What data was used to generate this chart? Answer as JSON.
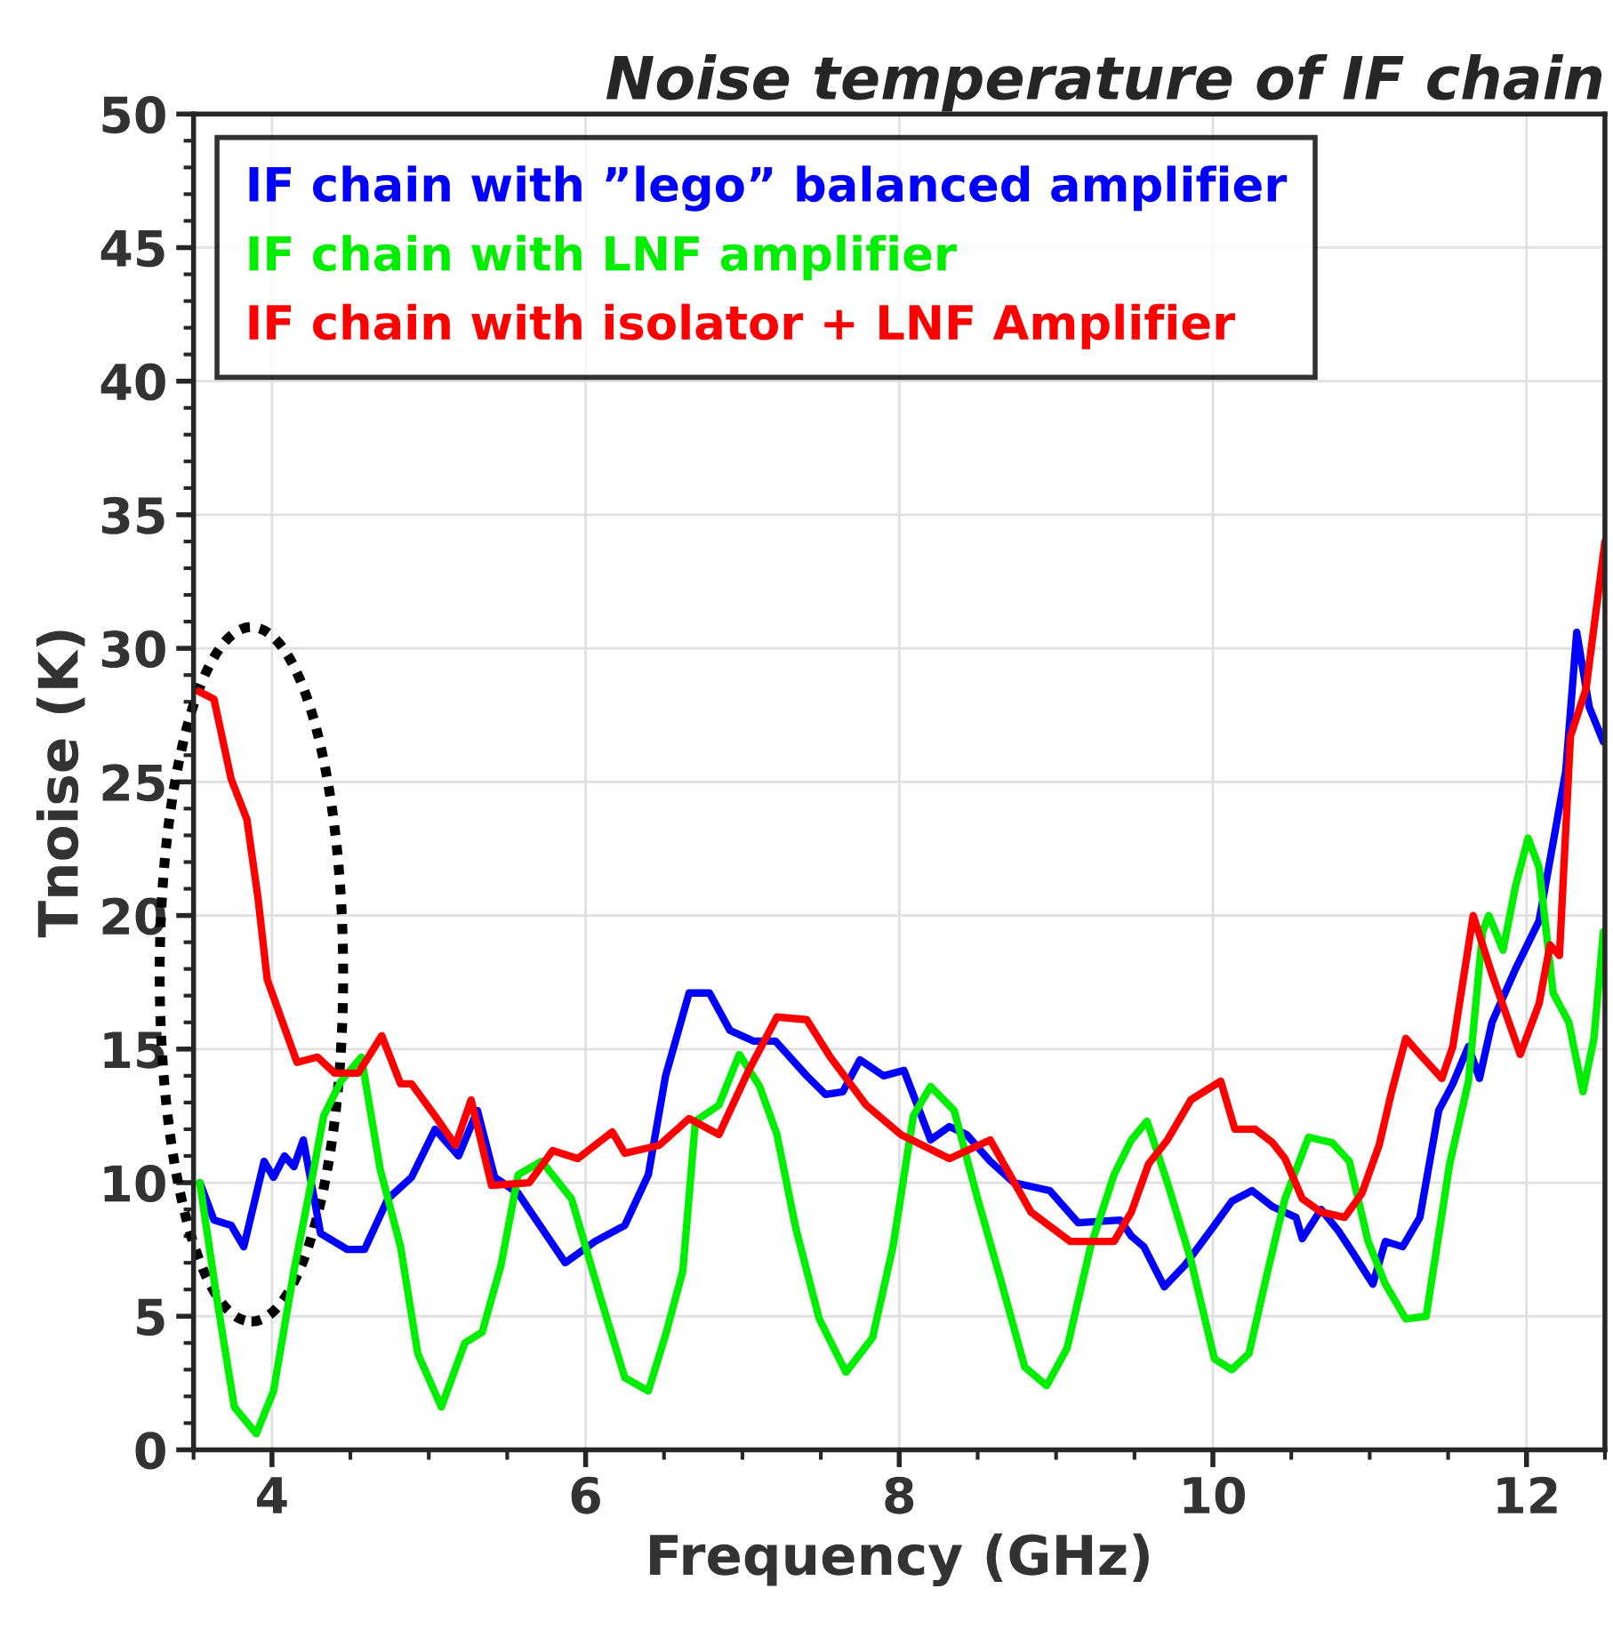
{
  "chart_data": {
    "type": "line",
    "title": "Noise temperature of IF chain",
    "xlabel": "Frequency (GHz)",
    "ylabel": "Tnoise (K)",
    "xlim": [
      3.5,
      12.5
    ],
    "xticks": [
      4,
      6,
      8,
      10,
      12
    ],
    "ylim": [
      0,
      50
    ],
    "yticks": [
      0,
      5,
      10,
      15,
      20,
      25,
      30,
      35,
      40,
      45,
      50
    ],
    "grid": true,
    "legend": "top left",
    "marker": "none",
    "line_style": "solid",
    "series": [
      {
        "name": "IF chain with ”lego” balanced amplifier",
        "color": "#0000ff",
        "x": [
          3.54,
          3.63,
          3.74,
          3.82,
          3.95,
          4.01,
          4.08,
          4.14,
          4.2,
          4.31,
          4.48,
          4.59,
          4.74,
          4.89,
          5.04,
          5.19,
          5.31,
          5.42,
          5.57,
          5.72,
          5.87,
          6.06,
          6.25,
          6.4,
          6.51,
          6.66,
          6.79,
          6.92,
          7.07,
          7.21,
          7.41,
          7.53,
          7.64,
          7.75,
          7.9,
          8.03,
          8.2,
          8.32,
          8.43,
          8.58,
          8.73,
          8.96,
          9.14,
          9.41,
          9.48,
          9.56,
          9.69,
          9.82,
          10.01,
          10.12,
          10.25,
          10.38,
          10.53,
          10.57,
          10.69,
          10.8,
          10.89,
          11.02,
          11.1,
          11.21,
          11.32,
          11.44,
          11.53,
          11.63,
          11.7,
          11.78,
          11.93,
          12.08,
          12.19,
          12.25,
          12.32,
          12.4,
          12.49
        ],
        "values": [
          10.0,
          8.6,
          8.4,
          7.6,
          10.8,
          10.2,
          11.0,
          10.6,
          11.6,
          8.1,
          7.5,
          7.5,
          9.4,
          10.2,
          12.0,
          11.0,
          12.7,
          10.2,
          9.6,
          8.3,
          7.0,
          7.8,
          8.4,
          10.3,
          14.0,
          17.1,
          17.1,
          15.7,
          15.3,
          15.3,
          14.0,
          13.3,
          13.4,
          14.6,
          14.0,
          14.2,
          11.6,
          12.1,
          11.8,
          10.8,
          10.0,
          9.7,
          8.5,
          8.6,
          8.0,
          7.6,
          6.1,
          6.9,
          8.4,
          9.3,
          9.7,
          9.1,
          8.7,
          7.9,
          9.0,
          8.2,
          7.4,
          6.2,
          7.8,
          7.6,
          8.7,
          12.7,
          13.7,
          15.1,
          13.9,
          16.0,
          18.0,
          19.8,
          23.4,
          25.4,
          30.6,
          27.8,
          26.5
        ]
      },
      {
        "name": "IF chain with LNF amplifier",
        "color": "#00ee00",
        "x": [
          3.54,
          3.65,
          3.76,
          3.9,
          4.01,
          4.14,
          4.25,
          4.33,
          4.44,
          4.57,
          4.69,
          4.82,
          4.93,
          5.08,
          5.23,
          5.34,
          5.46,
          5.57,
          5.72,
          5.91,
          6.1,
          6.25,
          6.4,
          6.51,
          6.62,
          6.7,
          6.85,
          6.98,
          7.11,
          7.22,
          7.34,
          7.49,
          7.66,
          7.83,
          7.96,
          8.09,
          8.2,
          8.35,
          8.5,
          8.65,
          8.8,
          8.94,
          9.07,
          9.22,
          9.37,
          9.48,
          9.58,
          9.71,
          9.86,
          10.01,
          10.12,
          10.23,
          10.35,
          10.46,
          10.61,
          10.76,
          10.87,
          10.99,
          11.1,
          11.23,
          11.36,
          11.51,
          11.63,
          11.72,
          11.76,
          11.85,
          11.93,
          12.01,
          12.08,
          12.17,
          12.27,
          12.36,
          12.43,
          12.49
        ],
        "values": [
          10.0,
          5.6,
          1.6,
          0.6,
          2.2,
          6.7,
          10.0,
          12.5,
          13.8,
          14.7,
          10.5,
          7.6,
          3.6,
          1.6,
          4.0,
          4.4,
          6.9,
          10.3,
          10.8,
          9.4,
          5.6,
          2.7,
          2.2,
          4.3,
          6.7,
          12.3,
          12.9,
          14.8,
          13.6,
          11.8,
          8.3,
          4.9,
          2.9,
          4.2,
          7.6,
          12.5,
          13.6,
          12.7,
          9.4,
          6.3,
          3.1,
          2.4,
          3.8,
          7.6,
          10.3,
          11.6,
          12.3,
          10.0,
          7.1,
          3.4,
          3.0,
          3.6,
          6.7,
          9.4,
          11.7,
          11.5,
          10.8,
          7.8,
          6.2,
          4.9,
          5.0,
          10.7,
          13.8,
          19.4,
          20.0,
          18.7,
          21.1,
          22.9,
          21.8,
          17.1,
          16.0,
          13.4,
          15.4,
          19.4
        ]
      },
      {
        "name": "IF chain with isolator + LNF Amplifier",
        "color": "#ff0000",
        "x": [
          3.53,
          3.63,
          3.74,
          3.84,
          3.91,
          3.97,
          4.08,
          4.16,
          4.29,
          4.4,
          4.55,
          4.7,
          4.82,
          4.89,
          5.04,
          5.17,
          5.27,
          5.4,
          5.64,
          5.79,
          5.95,
          6.17,
          6.25,
          6.47,
          6.66,
          6.85,
          7.04,
          7.22,
          7.41,
          7.56,
          7.79,
          8.01,
          8.32,
          8.58,
          8.84,
          9.09,
          9.37,
          9.48,
          9.59,
          9.71,
          9.86,
          10.05,
          10.14,
          10.27,
          10.38,
          10.46,
          10.57,
          10.69,
          10.84,
          10.95,
          11.06,
          11.14,
          11.23,
          11.32,
          11.46,
          11.53,
          11.66,
          11.78,
          11.96,
          12.08,
          12.15,
          12.21,
          12.28,
          12.38,
          12.5
        ],
        "values": [
          28.4,
          28.1,
          25.1,
          23.6,
          20.7,
          17.6,
          15.8,
          14.5,
          14.7,
          14.1,
          14.1,
          15.5,
          13.7,
          13.7,
          12.5,
          11.4,
          13.1,
          9.9,
          10.0,
          11.2,
          10.9,
          11.9,
          11.1,
          11.4,
          12.4,
          11.8,
          14.2,
          16.2,
          16.1,
          14.7,
          12.9,
          11.8,
          10.9,
          11.6,
          8.9,
          7.8,
          7.8,
          8.9,
          10.7,
          11.6,
          13.1,
          13.8,
          12.0,
          12.0,
          11.5,
          10.9,
          9.4,
          8.9,
          8.7,
          9.6,
          11.4,
          13.4,
          15.4,
          14.8,
          13.9,
          15.1,
          20.0,
          17.8,
          14.8,
          16.7,
          18.9,
          18.5,
          26.7,
          28.5,
          34.0
        ]
      }
    ]
  }
}
